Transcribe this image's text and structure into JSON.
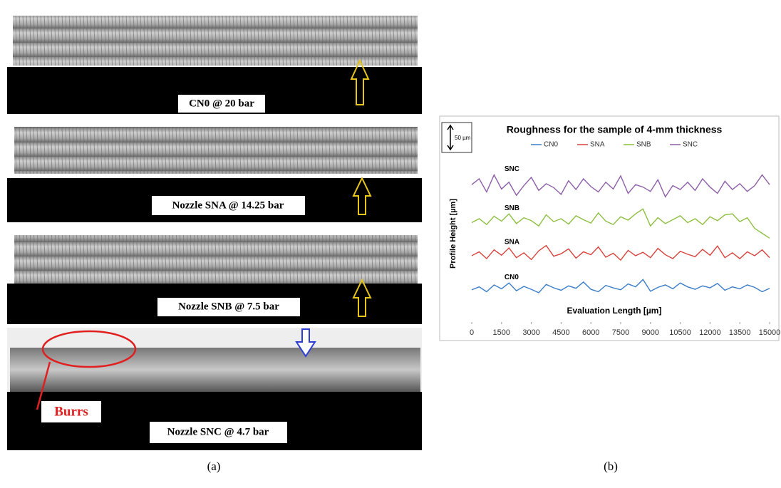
{
  "panel_a": {
    "labels": [
      "CN0 @ 20 bar",
      "Nozzle SNA @ 14.25 bar",
      "Nozzle SNB @ 7.5 bar",
      "Nozzle SNC @ 4.7 bar"
    ],
    "burrs": "Burrs",
    "caption": "(a)"
  },
  "panel_b": {
    "caption": "(b)",
    "scale_bar": "50 µm"
  },
  "chart_data": {
    "type": "line",
    "title": "Roughness for the sample of 4-mm thickness",
    "x_label": "Evaluation Length [µm]",
    "y_label": "Profile Height [µm]",
    "x": [
      0,
      375,
      750,
      1125,
      1500,
      1875,
      2250,
      2625,
      3000,
      3375,
      3750,
      4125,
      4500,
      4875,
      5250,
      5625,
      6000,
      6375,
      6750,
      7125,
      7500,
      7875,
      8250,
      8625,
      9000,
      9375,
      9750,
      10125,
      10500,
      10875,
      11250,
      11625,
      12000,
      12375,
      12750,
      13125,
      13500,
      13875,
      14250,
      14625,
      15000
    ],
    "xlim": [
      0,
      15000
    ],
    "xticks": [
      0,
      1500,
      3000,
      4500,
      6000,
      7500,
      9000,
      10500,
      12000,
      13500,
      15000
    ],
    "ylim": [
      0,
      300
    ],
    "series": [
      {
        "name": "CN0",
        "color": "#3a7dc9",
        "values": [
          34,
          40,
          30,
          44,
          36,
          48,
          32,
          41,
          35,
          28,
          45,
          38,
          33,
          42,
          37,
          50,
          35,
          30,
          43,
          38,
          34,
          46,
          40,
          55,
          31,
          39,
          44,
          36,
          48,
          40,
          35,
          42,
          38,
          47,
          33,
          40,
          36,
          44,
          39,
          30,
          37
        ]
      },
      {
        "name": "SNA",
        "color": "#d9413b",
        "values": [
          104,
          112,
          98,
          116,
          105,
          120,
          100,
          110,
          96,
          114,
          125,
          103,
          108,
          118,
          99,
          112,
          106,
          122,
          101,
          109,
          95,
          115,
          104,
          111,
          100,
          119,
          106,
          98,
          113,
          107,
          102,
          117,
          105,
          124,
          100,
          110,
          98,
          112,
          104,
          116,
          100
        ]
      },
      {
        "name": "SNB",
        "color": "#8cbf3f",
        "values": [
          172,
          180,
          168,
          185,
          175,
          190,
          170,
          182,
          176,
          165,
          188,
          174,
          180,
          169,
          186,
          178,
          171,
          192,
          175,
          168,
          184,
          177,
          190,
          200,
          165,
          182,
          170,
          178,
          186,
          172,
          180,
          168,
          184,
          176,
          188,
          190,
          174,
          182,
          160,
          150,
          140
        ]
      },
      {
        "name": "SNC",
        "color": "#8e5ea8",
        "values": [
          250,
          262,
          235,
          270,
          241,
          255,
          228,
          248,
          265,
          238,
          252,
          244,
          230,
          258,
          240,
          262,
          246,
          235,
          255,
          241,
          268,
          232,
          250,
          245,
          236,
          260,
          225,
          248,
          240,
          255,
          238,
          262,
          245,
          232,
          257,
          240,
          252,
          236,
          248,
          270,
          250
        ]
      }
    ]
  }
}
